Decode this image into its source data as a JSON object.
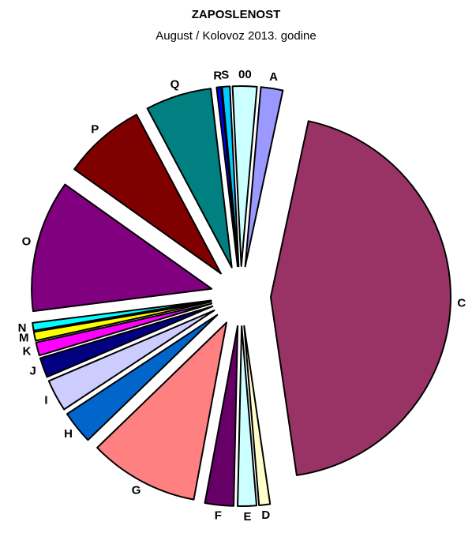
{
  "chart_data": {
    "type": "pie",
    "title": "ZAPOSLENOST",
    "subtitle": "August / Kolovoz 2013. godine",
    "exploded": true,
    "slices": [
      {
        "label": "A",
        "value": 2.0,
        "color": "#9999ff"
      },
      {
        "label": "C",
        "value": 45.0,
        "color": "#993366"
      },
      {
        "label": "D",
        "value": 1.0,
        "color": "#ffffcc"
      },
      {
        "label": "E",
        "value": 1.7,
        "color": "#ccffff"
      },
      {
        "label": "F",
        "value": 2.6,
        "color": "#660066"
      },
      {
        "label": "G",
        "value": 10.0,
        "color": "#ff8080"
      },
      {
        "label": "H",
        "value": 3.0,
        "color": "#0066cc"
      },
      {
        "label": "I",
        "value": 2.9,
        "color": "#ccccff"
      },
      {
        "label": "J",
        "value": 1.8,
        "color": "#000080"
      },
      {
        "label": "K",
        "value": 1.2,
        "color": "#ff00ff"
      },
      {
        "label": "M",
        "value": 0.8,
        "color": "#ffff00"
      },
      {
        "label": "N",
        "value": 0.7,
        "color": "#00ffff"
      },
      {
        "label": "O",
        "value": 12.0,
        "color": "#800080"
      },
      {
        "label": "P",
        "value": 7.5,
        "color": "#800000"
      },
      {
        "label": "Q",
        "value": 6.0,
        "color": "#008080"
      },
      {
        "label": "R",
        "value": 0.4,
        "color": "#0000ff"
      },
      {
        "label": "S",
        "value": 0.7,
        "color": "#00ccff"
      },
      {
        "label": "00",
        "value": 2.2,
        "color": "#ccffff"
      }
    ]
  }
}
